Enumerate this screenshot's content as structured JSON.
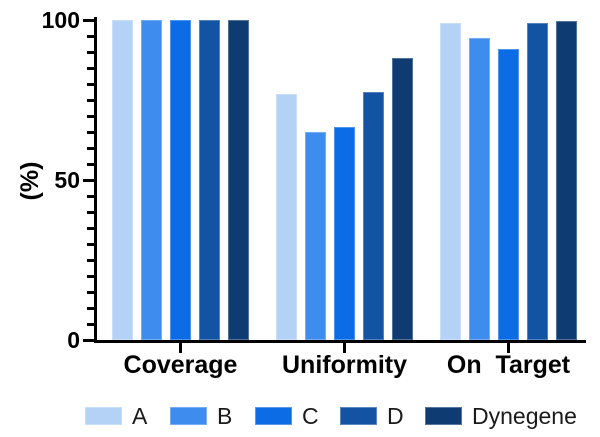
{
  "chart_data": {
    "type": "bar",
    "title": "",
    "xlabel": "",
    "ylabel": "(%)",
    "ylim": [
      0,
      100
    ],
    "yticks_major": [
      0,
      50,
      100
    ],
    "ytick_labels": [
      "0",
      "50",
      "100"
    ],
    "ytick_minor_step": 5,
    "grid": false,
    "legend_position": "bottom",
    "categories": [
      "Coverage",
      "Uniformity",
      "On Target"
    ],
    "series": [
      {
        "name": "A",
        "color": "#b3d2f5",
        "values": [
          100,
          77,
          99
        ]
      },
      {
        "name": "B",
        "color": "#3d8cee",
        "values": [
          100,
          65,
          94.5
        ]
      },
      {
        "name": "C",
        "color": "#0c6ce6",
        "values": [
          100,
          66.5,
          91
        ]
      },
      {
        "name": "D",
        "color": "#1254a3",
        "values": [
          100,
          77.5,
          99
        ]
      },
      {
        "name": "Dynegene",
        "color": "#0e3c72",
        "values": [
          100,
          88,
          99.7
        ]
      }
    ],
    "colors": {
      "axis": "#000000",
      "text": "#000000",
      "background": "#ffffff"
    }
  }
}
